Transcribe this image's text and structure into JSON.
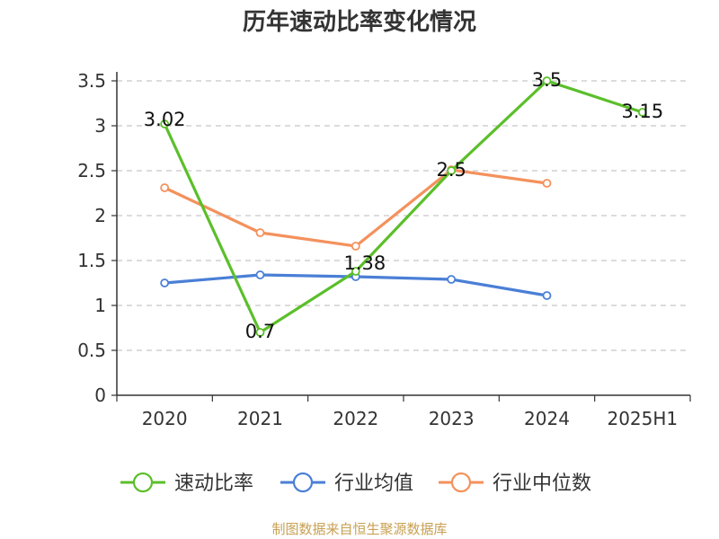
{
  "chart_data": {
    "type": "line",
    "title": "历年速动比率变化情况",
    "categories": [
      "2020",
      "2021",
      "2022",
      "2023",
      "2024",
      "2025H1"
    ],
    "y_ticks": [
      "0",
      "0.5",
      "1",
      "1.5",
      "2",
      "2.5",
      "3",
      "3.5"
    ],
    "ylim": [
      0,
      3.5
    ],
    "grid": true,
    "legend_position": "bottom",
    "series": [
      {
        "name": "速动比率",
        "color": "#5bbf2a",
        "values": [
          3.02,
          0.7,
          1.38,
          2.5,
          3.5,
          3.15
        ],
        "labels": [
          "3.02",
          "0.7",
          "1.38",
          "2.5",
          "3.5",
          "3.15"
        ]
      },
      {
        "name": "行业均值",
        "color": "#4a7fd6",
        "values": [
          1.25,
          1.34,
          1.32,
          1.29,
          1.11,
          null
        ]
      },
      {
        "name": "行业中位数",
        "color": "#f4915c",
        "values": [
          2.31,
          1.81,
          1.66,
          2.51,
          2.36,
          null
        ]
      }
    ]
  },
  "footer": {
    "source": "制图数据来自恒生聚源数据库"
  }
}
